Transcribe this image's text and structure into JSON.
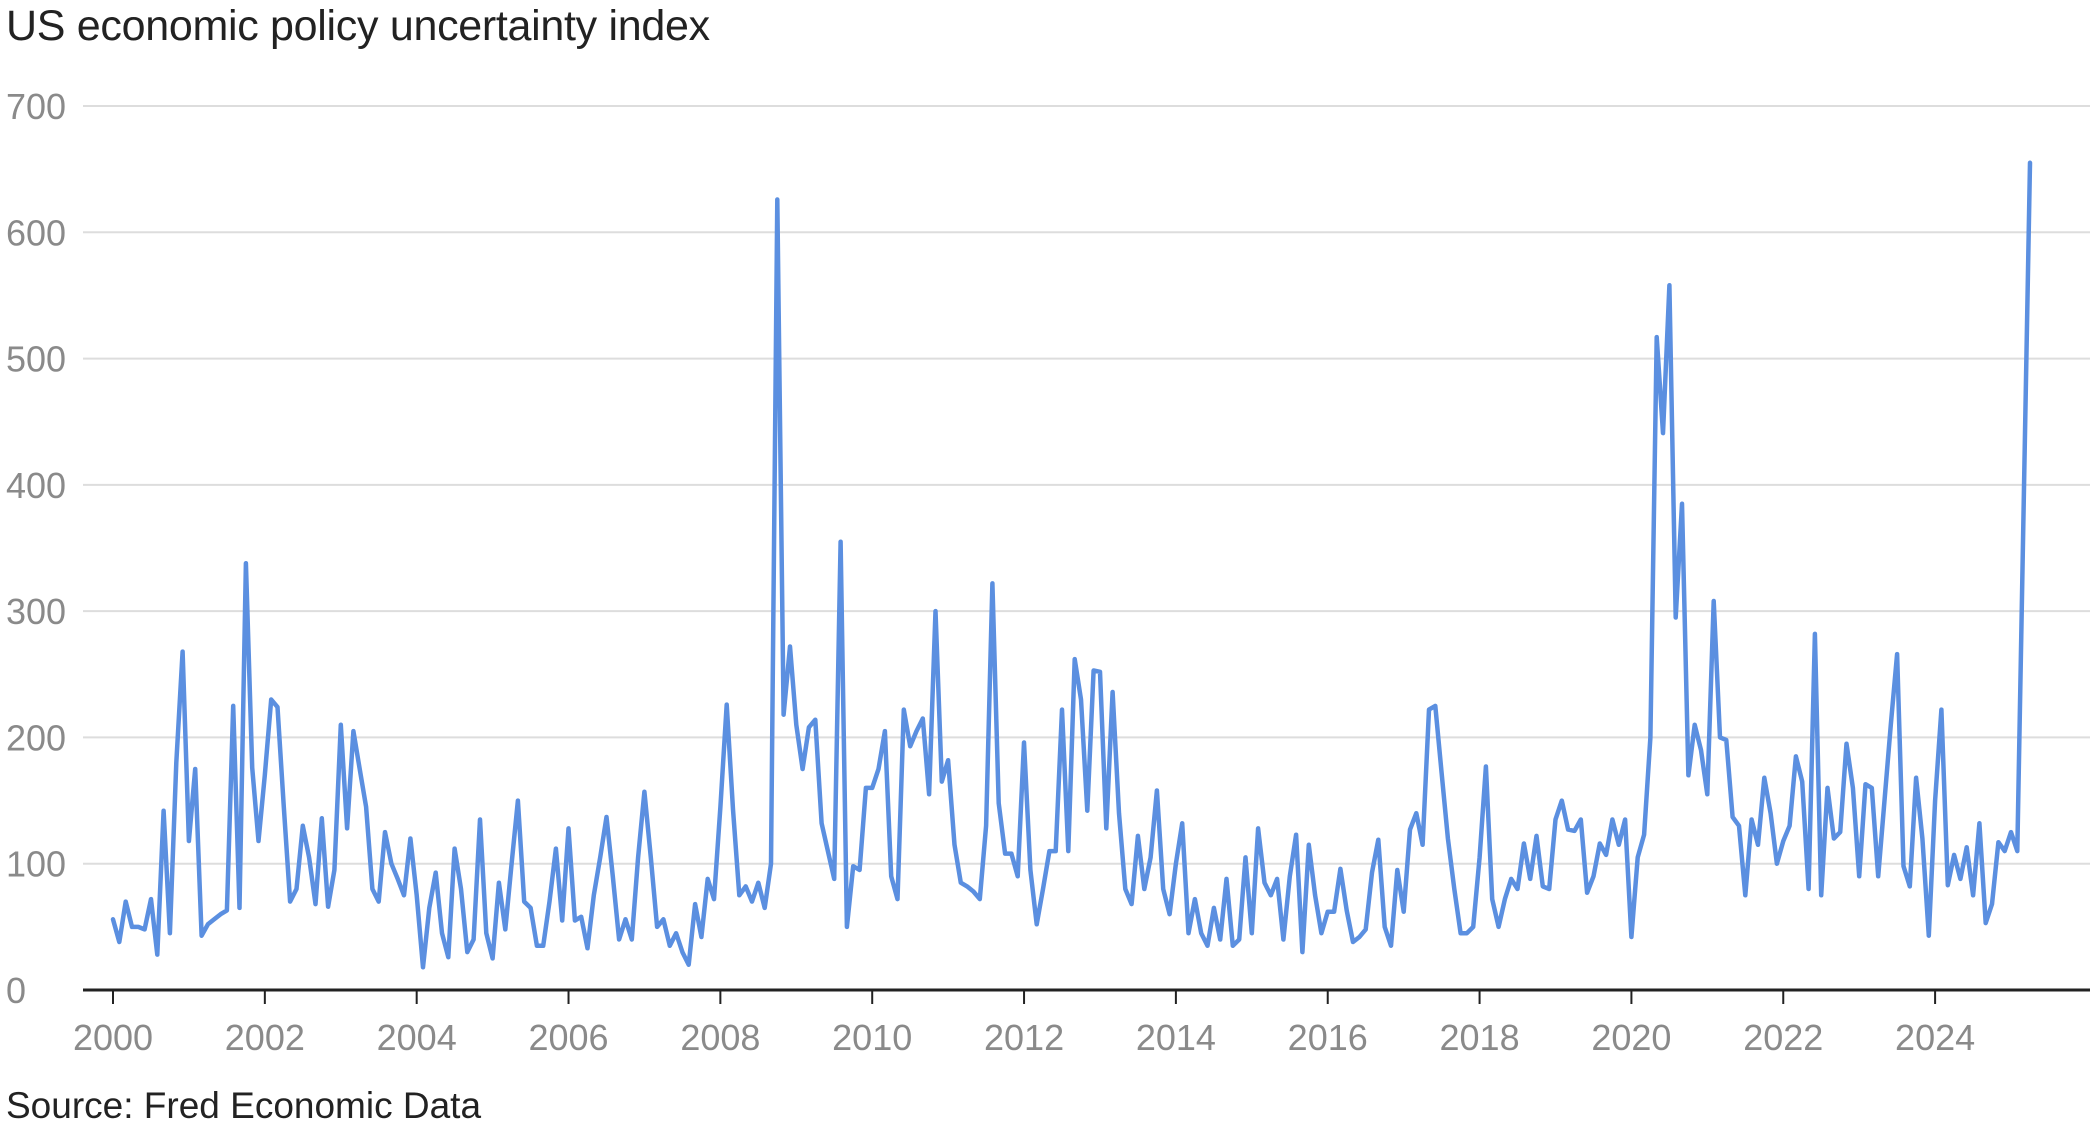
{
  "chart_data": {
    "type": "line",
    "title": "US economic policy uncertainty index",
    "source": "Source: Fred Economic Data",
    "xlabel": "",
    "ylabel": "",
    "xlim": [
      2000,
      2025.25
    ],
    "ylim": [
      0,
      700
    ],
    "x_ticks": [
      2000,
      2002,
      2004,
      2006,
      2008,
      2010,
      2012,
      2014,
      2016,
      2018,
      2020,
      2022,
      2024
    ],
    "y_ticks": [
      0,
      100,
      200,
      300,
      400,
      500,
      600,
      700
    ],
    "grid": true,
    "legend": "none",
    "line_color": "#5b8fe0",
    "series": [
      {
        "x_start": 2000.0,
        "x_step_months": 1,
        "values": [
          56,
          38,
          70,
          50,
          50,
          48,
          72,
          28,
          142,
          45,
          180,
          268,
          118,
          175,
          43,
          52,
          56,
          60,
          63,
          225,
          65,
          338,
          176,
          118,
          170,
          230,
          224,
          145,
          70,
          80,
          130,
          105,
          68,
          136,
          66,
          95,
          210,
          128,
          205,
          175,
          145,
          80,
          70,
          125,
          100,
          88,
          75,
          120,
          75,
          18,
          65,
          93,
          45,
          26,
          112,
          80,
          30,
          40,
          135,
          45,
          25,
          85,
          48,
          100,
          150,
          70,
          65,
          35,
          35,
          70,
          112,
          55,
          128,
          55,
          58,
          33,
          75,
          105,
          137,
          90,
          40,
          56,
          40,
          105,
          157,
          105,
          50,
          56,
          35,
          45,
          30,
          20,
          68,
          42,
          88,
          72,
          145,
          226,
          143,
          75,
          82,
          70,
          85,
          65,
          100,
          626,
          218,
          272,
          210,
          175,
          208,
          214,
          132,
          110,
          88,
          355,
          50,
          98,
          95,
          160,
          160,
          175,
          205,
          90,
          72,
          222,
          193,
          205,
          215,
          155,
          300,
          165,
          182,
          115,
          85,
          82,
          78,
          72,
          130,
          322,
          148,
          108,
          108,
          90,
          196,
          95,
          52,
          80,
          110,
          110,
          222,
          110,
          262,
          230,
          142,
          253,
          252,
          128,
          236,
          140,
          80,
          68,
          122,
          80,
          105,
          158,
          80,
          60,
          100,
          132,
          45,
          72,
          45,
          35,
          65,
          40,
          88,
          35,
          40,
          105,
          45,
          128,
          85,
          75,
          88,
          40,
          90,
          123,
          30,
          115,
          75,
          45,
          62,
          62,
          96,
          63,
          38,
          42,
          48,
          93,
          119,
          50,
          35,
          95,
          62,
          127,
          140,
          115,
          222,
          225,
          172,
          120,
          80,
          45,
          45,
          50,
          105,
          177,
          72,
          50,
          72,
          88,
          80,
          116,
          88,
          122,
          82,
          80,
          135,
          150,
          127,
          126,
          135,
          77,
          90,
          116,
          107,
          135,
          115,
          135,
          42,
          105,
          123,
          200,
          517,
          441,
          558,
          295,
          385,
          170,
          210,
          190,
          155,
          308,
          200,
          198,
          137,
          130,
          75,
          135,
          115,
          168,
          140,
          100,
          118,
          130,
          185,
          165,
          80,
          282,
          75,
          160,
          120,
          125,
          195,
          160,
          90,
          163,
          160,
          90,
          150,
          210,
          266,
          98,
          82,
          168,
          120,
          43,
          150,
          222,
          83,
          107,
          88,
          113,
          75,
          132,
          53,
          68,
          117,
          110,
          125,
          110,
          385,
          655
        ]
      }
    ]
  }
}
